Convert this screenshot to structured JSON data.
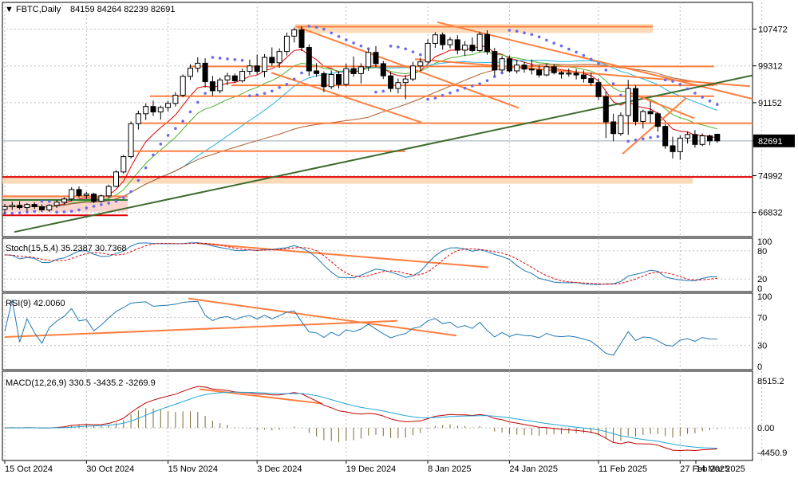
{
  "chart_data": {
    "type": "candlestick",
    "symbol": "FBTC",
    "timeframe": "Daily",
    "header": {
      "symbol_tf": "FBTC,Daily",
      "ohlc": "84159 84264 82239 82691",
      "open": 84159,
      "high": 84264,
      "low": 82239,
      "close": 82691
    },
    "price_axis": {
      "range": [
        62000,
        112500
      ],
      "ticks": [
        107472,
        99312,
        91152,
        82691,
        74992,
        66832
      ],
      "tick_labels": [
        "107472",
        "99312",
        "91152",
        "82691",
        "74992",
        "66832"
      ],
      "current_label": "82691"
    },
    "date_axis": {
      "labels": [
        "15 Oct 2024",
        "30 Oct 2024",
        "15 Nov 2024",
        "3 Dec 2024",
        "19 Dec 2024",
        "8 Jan 2025",
        "24 Jan 2025",
        "11 Feb 2025",
        "27 Feb 2025",
        "14 Mar 2025"
      ]
    },
    "candles": [
      [
        67500,
        68700,
        66600,
        68100
      ],
      [
        68100,
        69200,
        67400,
        68400
      ],
      [
        68400,
        69300,
        67500,
        67900
      ],
      [
        67900,
        68900,
        67100,
        68600
      ],
      [
        68600,
        69100,
        67600,
        68100
      ],
      [
        68100,
        68600,
        66900,
        67400
      ],
      [
        67400,
        68700,
        66900,
        68400
      ],
      [
        68400,
        69600,
        67800,
        69100
      ],
      [
        69100,
        70200,
        68500,
        69800
      ],
      [
        69800,
        72400,
        69300,
        71900
      ],
      [
        71900,
        72600,
        70100,
        70600
      ],
      [
        70600,
        71400,
        69800,
        70900
      ],
      [
        70900,
        71200,
        68900,
        69300
      ],
      [
        69300,
        70800,
        69000,
        70500
      ],
      [
        70500,
        73000,
        70000,
        72600
      ],
      [
        72600,
        76200,
        72400,
        75800
      ],
      [
        75800,
        79600,
        75400,
        79200
      ],
      [
        79200,
        87000,
        78800,
        86500
      ],
      [
        86500,
        89400,
        85200,
        88700
      ],
      [
        88700,
        91000,
        87300,
        90300
      ],
      [
        90300,
        91600,
        88200,
        89100
      ],
      [
        89100,
        90500,
        87400,
        90100
      ],
      [
        90100,
        91600,
        89200,
        91000
      ],
      [
        91000,
        93500,
        90300,
        92800
      ],
      [
        92800,
        97400,
        92400,
        97000
      ],
      [
        97000,
        99700,
        96200,
        98800
      ],
      [
        98800,
        101200,
        97900,
        99900
      ],
      [
        99900,
        101000,
        94500,
        95800
      ],
      [
        95800,
        97100,
        92700,
        93800
      ],
      [
        93800,
        96700,
        93200,
        96200
      ],
      [
        96200,
        97800,
        95000,
        97100
      ],
      [
        97100,
        97600,
        95500,
        96000
      ],
      [
        96000,
        98700,
        95600,
        98100
      ],
      [
        98100,
        100700,
        97300,
        99300
      ],
      [
        99300,
        101800,
        97400,
        98100
      ],
      [
        98100,
        101900,
        96800,
        101200
      ],
      [
        101200,
        103400,
        99300,
        100000
      ],
      [
        100000,
        103200,
        98900,
        102500
      ],
      [
        102500,
        106700,
        101600,
        105900
      ],
      [
        105900,
        107800,
        104500,
        107300
      ],
      [
        107300,
        108100,
        102600,
        103400
      ],
      [
        103400,
        104100,
        97100,
        98200
      ],
      [
        98200,
        99900,
        96900,
        97600
      ],
      [
        97600,
        98100,
        93500,
        94700
      ],
      [
        94700,
        98300,
        94200,
        97400
      ],
      [
        97400,
        98100,
        94300,
        95200
      ],
      [
        95200,
        99800,
        94800,
        98700
      ],
      [
        98700,
        101400,
        96900,
        97600
      ],
      [
        97600,
        99900,
        95400,
        99100
      ],
      [
        99100,
        103000,
        98200,
        102300
      ],
      [
        102300,
        103700,
        99000,
        99800
      ],
      [
        99800,
        100400,
        96400,
        97100
      ],
      [
        97100,
        98000,
        93500,
        94300
      ],
      [
        94300,
        96500,
        93200,
        95600
      ],
      [
        95600,
        97300,
        91900,
        96400
      ],
      [
        96400,
        100200,
        95900,
        99300
      ],
      [
        99300,
        101100,
        98100,
        100200
      ],
      [
        100200,
        105200,
        99900,
        104300
      ],
      [
        104300,
        106800,
        103300,
        106200
      ],
      [
        106200,
        106700,
        102900,
        104000
      ],
      [
        104000,
        105700,
        103200,
        105100
      ],
      [
        105100,
        106100,
        101900,
        102800
      ],
      [
        102800,
        104800,
        101500,
        103900
      ],
      [
        103900,
        105600,
        102300,
        102700
      ],
      [
        102700,
        106900,
        102300,
        106300
      ],
      [
        106300,
        107200,
        101800,
        102500
      ],
      [
        102500,
        103300,
        97100,
        98400
      ],
      [
        98400,
        101500,
        97900,
        100900
      ],
      [
        100900,
        101600,
        97800,
        98200
      ],
      [
        98200,
        100600,
        97600,
        99500
      ],
      [
        99500,
        100200,
        97800,
        98600
      ],
      [
        98600,
        100700,
        97400,
        98400
      ],
      [
        98400,
        99400,
        96700,
        97300
      ],
      [
        97300,
        99800,
        97000,
        99100
      ],
      [
        99100,
        99700,
        97400,
        97800
      ],
      [
        97800,
        98200,
        96500,
        97500
      ],
      [
        97500,
        98700,
        96900,
        97700
      ],
      [
        97700,
        98600,
        96300,
        97300
      ],
      [
        97300,
        98300,
        95600,
        96500
      ],
      [
        96500,
        97800,
        94900,
        95600
      ],
      [
        95600,
        96500,
        91700,
        92500
      ],
      [
        92500,
        93600,
        83300,
        86900
      ],
      [
        86900,
        88700,
        82600,
        84300
      ],
      [
        84300,
        89000,
        83800,
        88300
      ],
      [
        88300,
        96200,
        84000,
        94300
      ],
      [
        94300,
        95000,
        86100,
        87000
      ],
      [
        87000,
        89600,
        85400,
        89200
      ],
      [
        89200,
        91400,
        86700,
        88700
      ],
      [
        88700,
        89100,
        84700,
        85900
      ],
      [
        85900,
        86400,
        80900,
        81600
      ],
      [
        81600,
        83600,
        78800,
        80300
      ],
      [
        80300,
        83900,
        78500,
        83300
      ],
      [
        83300,
        84800,
        82100,
        84100
      ],
      [
        84100,
        85100,
        81200,
        81900
      ],
      [
        81900,
        84300,
        81500,
        83800
      ],
      [
        83800,
        84100,
        81700,
        82700
      ],
      [
        84159,
        84264,
        82239,
        82691
      ]
    ],
    "indicators": {
      "stochastic": {
        "label": "Stoch(15,5,4) 35.2387 30.7368",
        "k": 35.2387,
        "d": 30.7368,
        "levels": [
          80,
          20
        ],
        "scale_labels": [
          "100",
          "80",
          "20",
          "0"
        ]
      },
      "rsi": {
        "label": "RSI(9) 42.0060",
        "value": 42.006,
        "levels": [
          70,
          30
        ],
        "scale_labels": [
          "100",
          "70",
          "30",
          "0"
        ]
      },
      "macd": {
        "label": "MACD(12,26,9) 330.5 -3435.2 -3269.9",
        "values": [
          330.5,
          -3435.2,
          -3269.9
        ],
        "scale_labels": [
          "8515.2",
          "0.00",
          "-4450.9"
        ]
      }
    },
    "colors": {
      "bull_body": "#ffffff",
      "bear_body": "#000000",
      "candle_line": "#000000",
      "trendline": "#ff7f3f",
      "trendline_dark": "#3d6b2e",
      "support_red": "#e00000",
      "zone_fill": "#fbd7b3",
      "sma_fast": "#e00000",
      "sma_med": "#4caf2a",
      "sma_slow": "#22b0e0",
      "sma_long": "#b05a2a",
      "psar": "#6a6af0",
      "stoch_main": "#1f77b4",
      "stoch_signal": "#e00000",
      "rsi_line": "#1f77b4",
      "macd_main": "#c00000",
      "macd_signal": "#22a7d8",
      "macd_hist": "#7a6a30"
    }
  }
}
